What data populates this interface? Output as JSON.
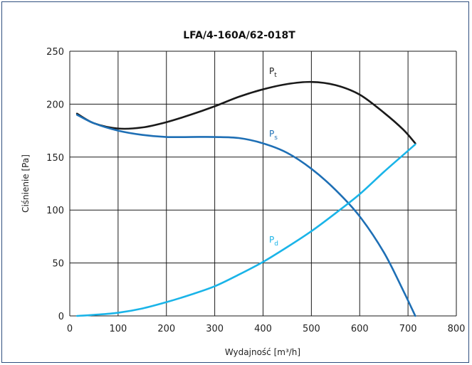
{
  "chart_data": {
    "type": "line",
    "title": "LFA/4-160A/62-018T",
    "xlabel": "Wydajność [m³/h]",
    "ylabel": "Ciśnienie [Pa]",
    "xlim": [
      0,
      800
    ],
    "ylim": [
      0,
      250
    ],
    "xticks": [
      0,
      100,
      200,
      300,
      400,
      500,
      600,
      700,
      800
    ],
    "yticks": [
      0,
      50,
      100,
      150,
      200,
      250
    ],
    "grid": true,
    "series": [
      {
        "name": "Pt",
        "label_base": "P",
        "label_sub": "t",
        "color": "#1a1a1a",
        "x": [
          15,
          50,
          100,
          150,
          200,
          250,
          300,
          350,
          400,
          450,
          500,
          550,
          600,
          650,
          690,
          715
        ],
        "y": [
          191,
          182,
          177,
          178,
          183,
          190,
          198,
          207,
          214,
          219,
          221,
          218,
          209,
          192,
          176,
          163
        ]
      },
      {
        "name": "Ps",
        "label_base": "P",
        "label_sub": "s",
        "color": "#1e6fb5",
        "x": [
          15,
          50,
          100,
          150,
          200,
          250,
          300,
          350,
          400,
          450,
          500,
          550,
          600,
          650,
          690,
          715
        ],
        "y": [
          190,
          182,
          175,
          171,
          169,
          169,
          169,
          168,
          163,
          154,
          139,
          119,
          94,
          60,
          24,
          0
        ]
      },
      {
        "name": "Pd",
        "label_base": "P",
        "label_sub": "d",
        "color": "#1ab4e8",
        "x": [
          15,
          50,
          100,
          150,
          200,
          250,
          300,
          350,
          400,
          450,
          500,
          550,
          600,
          650,
          690,
          715
        ],
        "y": [
          0,
          1,
          3,
          7,
          13,
          20,
          28,
          39,
          51,
          65,
          80,
          97,
          115,
          136,
          152,
          162
        ]
      }
    ]
  }
}
